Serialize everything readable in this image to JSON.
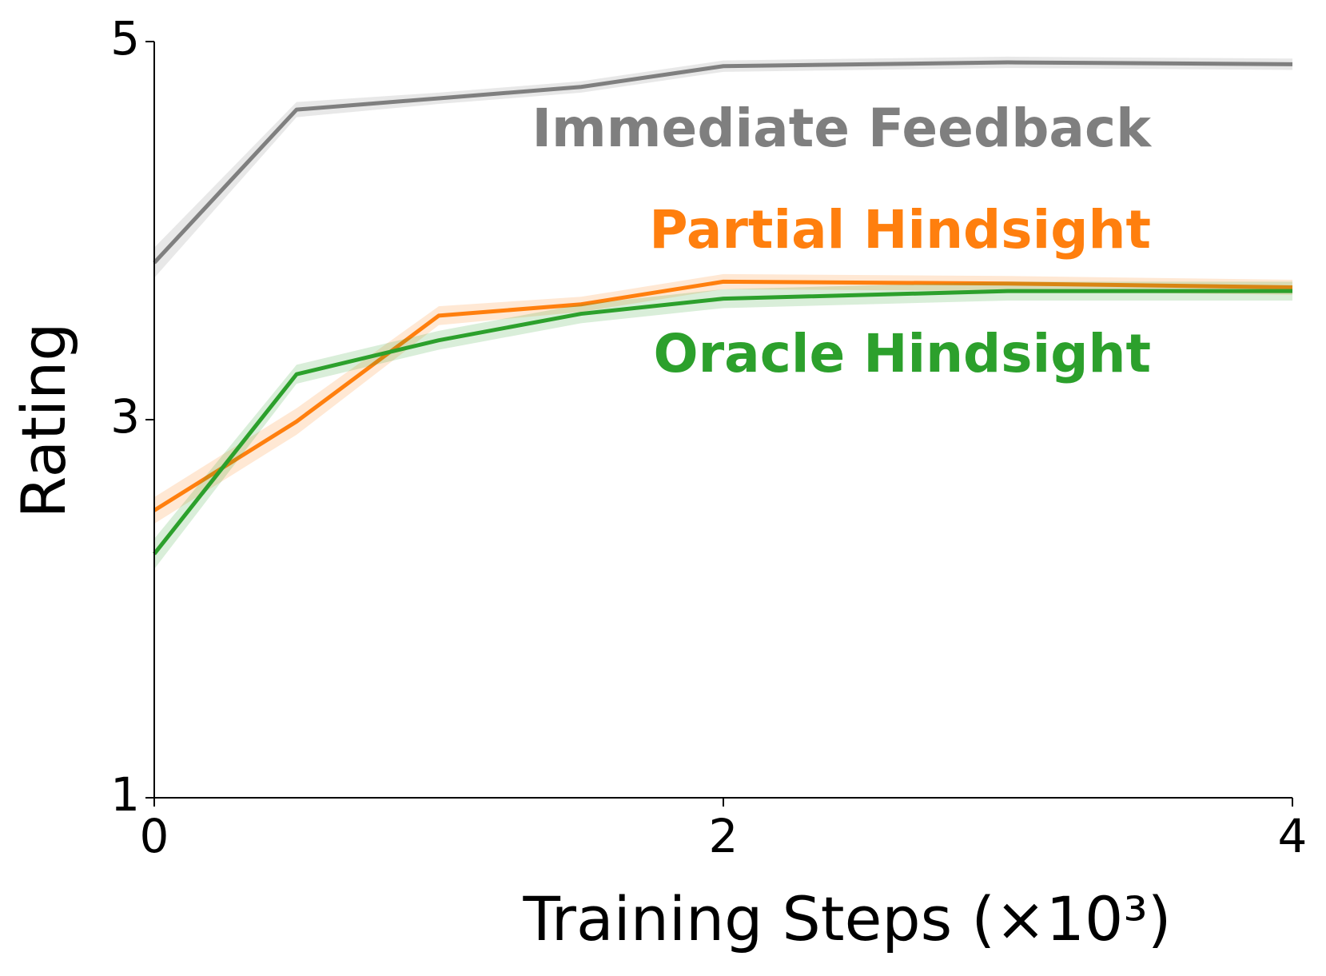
{
  "chart_data": {
    "type": "line",
    "x_label": "Training Steps (×10³)",
    "y_label": "Rating",
    "x": [
      0,
      0.5,
      1,
      1.5,
      2,
      3,
      4
    ],
    "series": [
      {
        "name": "Immediate Feedback",
        "color": "#7f7f7f",
        "values": [
          3.83,
          4.64,
          4.7,
          4.76,
          4.87,
          4.89,
          4.88
        ],
        "errors": [
          0.08,
          0.04,
          0.03,
          0.03,
          0.03,
          0.03,
          0.03
        ]
      },
      {
        "name": "Partial Hindsight",
        "color": "#ff7f0e",
        "values": [
          2.52,
          2.99,
          3.55,
          3.61,
          3.73,
          3.72,
          3.7
        ],
        "errors": [
          0.07,
          0.07,
          0.05,
          0.04,
          0.04,
          0.04,
          0.04
        ]
      },
      {
        "name": "Oracle Hindsight",
        "color": "#2ca02c",
        "values": [
          2.29,
          3.24,
          3.42,
          3.56,
          3.64,
          3.68,
          3.68
        ],
        "errors": [
          0.08,
          0.05,
          0.05,
          0.05,
          0.05,
          0.05,
          0.05
        ]
      }
    ],
    "xlim": [
      0,
      4
    ],
    "xticks": [
      0,
      2,
      4
    ],
    "ylim": [
      1,
      5
    ],
    "yticks": [
      1,
      3,
      5
    ],
    "grid": false
  }
}
